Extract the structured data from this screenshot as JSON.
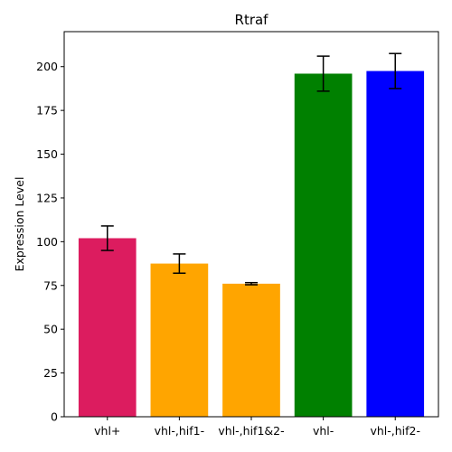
{
  "chart_data": {
    "type": "bar",
    "title": "Rtraf",
    "xlabel": "",
    "ylabel": "Expression Level",
    "ylim": [
      0,
      220
    ],
    "yticks": [
      0,
      25,
      50,
      75,
      100,
      125,
      150,
      175,
      200
    ],
    "categories": [
      "vhl+",
      "vhl-,hif1-",
      "vhl-,hif1&2-",
      "vhl-",
      "vhl-,hif2-"
    ],
    "values": [
      102,
      87.5,
      76,
      196,
      197.5
    ],
    "errors": [
      7,
      5.5,
      0.6,
      10,
      10
    ],
    "colors": [
      "#DC1C5F",
      "#FFA500",
      "#FFA500",
      "#008000",
      "#0000FF"
    ],
    "grid": false,
    "legend": "none"
  }
}
